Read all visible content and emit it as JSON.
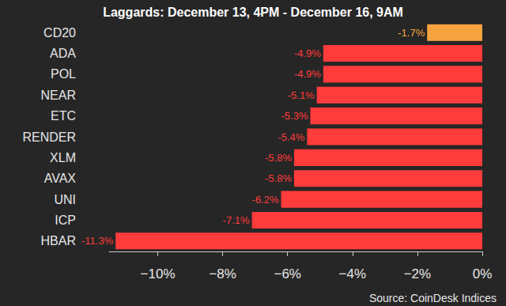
{
  "chart_data": {
    "type": "bar",
    "orientation": "horizontal",
    "title": "Laggards: December 13, 4PM - December 16, 9AM",
    "annotations": [
      "Source: CoinDesk Indices"
    ],
    "categories": [
      "CD20",
      "ADA",
      "POL",
      "NEAR",
      "ETC",
      "RENDER",
      "XLM",
      "AVAX",
      "UNI",
      "ICP",
      "HBAR"
    ],
    "values": [
      -1.7,
      -4.9,
      -4.9,
      -5.1,
      -5.3,
      -5.4,
      -5.8,
      -5.8,
      -6.2,
      -7.1,
      -11.3
    ],
    "value_labels": [
      "-1.7%",
      "-4.9%",
      "-4.9%",
      "-5.1%",
      "-5.3%",
      "-5.4%",
      "-5.8%",
      "-5.8%",
      "-6.2%",
      "-7.1%",
      "-11.3%"
    ],
    "colors": [
      "#f7a440",
      "#ff3b3b",
      "#ff3b3b",
      "#ff3b3b",
      "#ff3b3b",
      "#ff3b3b",
      "#ff3b3b",
      "#ff3b3b",
      "#ff3b3b",
      "#ff3b3b",
      "#ff3b3b"
    ],
    "xlim": [
      -11.5,
      0
    ],
    "xticks": [
      {
        "value": -10,
        "label": "−10%"
      },
      {
        "value": -8,
        "label": "−8%"
      },
      {
        "value": -6,
        "label": "−6%"
      },
      {
        "value": -4,
        "label": "−4%"
      },
      {
        "value": -2,
        "label": "−2%"
      },
      {
        "value": 0,
        "label": "0%"
      }
    ],
    "grid": false,
    "data_labels": true
  }
}
